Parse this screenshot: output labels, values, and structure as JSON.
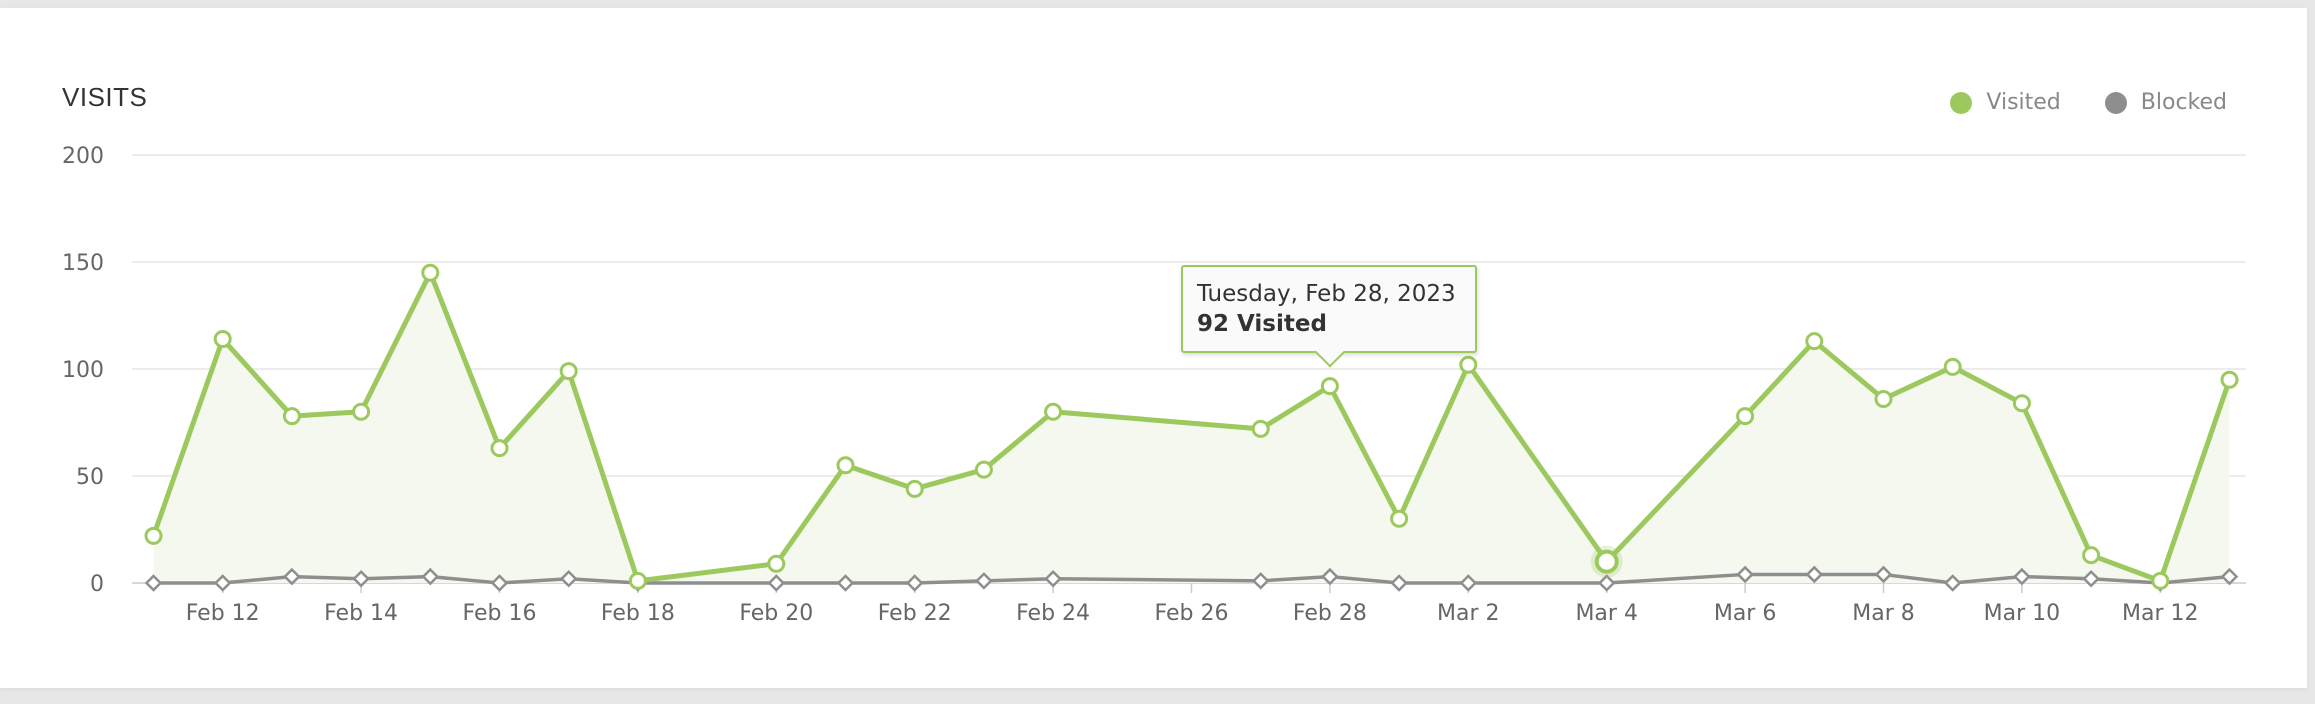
{
  "colors": {
    "visited": "#9cc95e",
    "visited_fill": "#f4f8ee",
    "blocked": "#8e8e8e",
    "grid": "#e6e6e6",
    "axis": "#cccccc"
  },
  "tooltip": {
    "date": "Tuesday, Feb 28, 2023",
    "value_label": "92 Visited",
    "point_index": 17
  },
  "chart_data": {
    "type": "area",
    "title": "VISITS",
    "legend_position": "top-right",
    "grid": true,
    "ylim": [
      0,
      200
    ],
    "yticks": [
      0,
      50,
      100,
      150,
      200
    ],
    "xlim": [
      "2023-02-11",
      "2023-03-13"
    ],
    "xticks": [
      "Feb 12",
      "Feb 14",
      "Feb 16",
      "Feb 18",
      "Feb 20",
      "Feb 22",
      "Feb 24",
      "Feb 26",
      "Feb 28",
      "Mar 2",
      "Mar 4",
      "Mar 6",
      "Mar 8",
      "Mar 10",
      "Mar 12"
    ],
    "xtick_dates": [
      "2023-02-12",
      "2023-02-14",
      "2023-02-16",
      "2023-02-18",
      "2023-02-20",
      "2023-02-22",
      "2023-02-24",
      "2023-02-26",
      "2023-02-28",
      "2023-03-02",
      "2023-03-04",
      "2023-03-06",
      "2023-03-08",
      "2023-03-10",
      "2023-03-12"
    ],
    "x": [
      "2023-02-11",
      "2023-02-12",
      "2023-02-13",
      "2023-02-14",
      "2023-02-15",
      "2023-02-16",
      "2023-02-17",
      "2023-02-18",
      "2023-02-20",
      "2023-02-21",
      "2023-02-22",
      "2023-02-23",
      "2023-02-24",
      "2023-02-27",
      "2023-02-28",
      "2023-03-01",
      "2023-03-02",
      "2023-03-04",
      "2023-03-06",
      "2023-03-07",
      "2023-03-08",
      "2023-03-09",
      "2023-03-10",
      "2023-03-11",
      "2023-03-12",
      "2023-03-13"
    ],
    "series": [
      {
        "name": "Visited",
        "values": [
          22,
          114,
          78,
          80,
          145,
          63,
          99,
          1,
          9,
          55,
          44,
          53,
          80,
          72,
          92,
          30,
          102,
          10,
          78,
          113,
          86,
          101,
          84,
          13,
          1,
          95
        ]
      },
      {
        "name": "Blocked",
        "values": [
          0,
          0,
          3,
          2,
          3,
          0,
          2,
          0,
          0,
          0,
          0,
          1,
          2,
          1,
          3,
          0,
          0,
          0,
          4,
          4,
          4,
          0,
          3,
          2,
          0,
          3
        ]
      }
    ]
  }
}
